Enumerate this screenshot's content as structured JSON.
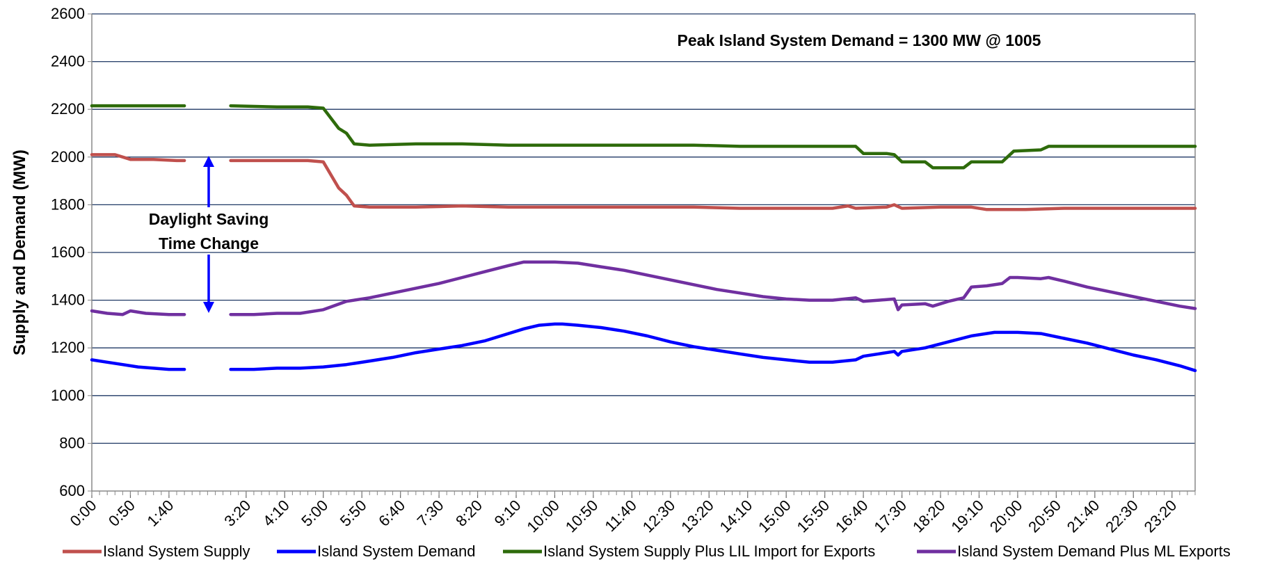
{
  "chart_data": {
    "type": "line",
    "title": "",
    "xlabel": "",
    "ylabel": "Supply and Demand (MW)",
    "ylim": [
      600,
      2600
    ],
    "y_ticks": [
      600,
      800,
      1000,
      1200,
      1400,
      1600,
      1800,
      2000,
      2200,
      2400,
      2600
    ],
    "x_range_minutes": [
      0,
      1430
    ],
    "x_step_minutes": 10,
    "x_tick_labels": [
      "0:00",
      "0:50",
      "1:40",
      "3:20",
      "4:10",
      "5:00",
      "5:50",
      "6:40",
      "7:30",
      "8:20",
      "9:10",
      "10:00",
      "10:50",
      "11:40",
      "12:30",
      "13:20",
      "14:10",
      "15:00",
      "15:50",
      "16:40",
      "17:30",
      "18:20",
      "19:10",
      "20:00",
      "20:50",
      "21:40",
      "22:30",
      "23:20"
    ],
    "gap_minutes": [
      120,
      180
    ],
    "grid": true,
    "legend_position": "bottom",
    "annotations": {
      "peak": "Peak Island System Demand = 1300 MW @ 1005",
      "dst_line1": "Daylight Saving",
      "dst_line2": "Time Change"
    },
    "series": [
      {
        "name": "Island System Supply",
        "color": "#C0504D",
        "points": [
          [
            0,
            2010
          ],
          [
            30,
            2010
          ],
          [
            50,
            1990
          ],
          [
            80,
            1990
          ],
          [
            110,
            1985
          ],
          [
            120,
            1985
          ],
          [
            180,
            1985
          ],
          [
            240,
            1985
          ],
          [
            280,
            1985
          ],
          [
            300,
            1980
          ],
          [
            320,
            1870
          ],
          [
            330,
            1840
          ],
          [
            340,
            1795
          ],
          [
            360,
            1790
          ],
          [
            420,
            1790
          ],
          [
            480,
            1795
          ],
          [
            540,
            1790
          ],
          [
            600,
            1790
          ],
          [
            660,
            1790
          ],
          [
            720,
            1790
          ],
          [
            780,
            1790
          ],
          [
            840,
            1785
          ],
          [
            900,
            1785
          ],
          [
            960,
            1785
          ],
          [
            980,
            1795
          ],
          [
            990,
            1785
          ],
          [
            1030,
            1790
          ],
          [
            1040,
            1800
          ],
          [
            1050,
            1785
          ],
          [
            1100,
            1790
          ],
          [
            1140,
            1790
          ],
          [
            1160,
            1780
          ],
          [
            1210,
            1780
          ],
          [
            1260,
            1785
          ],
          [
            1320,
            1785
          ],
          [
            1430,
            1785
          ]
        ]
      },
      {
        "name": "Island System Demand",
        "color": "#0000FF",
        "points": [
          [
            0,
            1150
          ],
          [
            20,
            1140
          ],
          [
            40,
            1130
          ],
          [
            60,
            1120
          ],
          [
            80,
            1115
          ],
          [
            100,
            1110
          ],
          [
            120,
            1110
          ],
          [
            180,
            1110
          ],
          [
            210,
            1110
          ],
          [
            240,
            1115
          ],
          [
            270,
            1115
          ],
          [
            300,
            1120
          ],
          [
            330,
            1130
          ],
          [
            360,
            1145
          ],
          [
            390,
            1160
          ],
          [
            420,
            1180
          ],
          [
            450,
            1195
          ],
          [
            480,
            1210
          ],
          [
            510,
            1230
          ],
          [
            540,
            1260
          ],
          [
            560,
            1280
          ],
          [
            580,
            1295
          ],
          [
            600,
            1300
          ],
          [
            610,
            1300
          ],
          [
            630,
            1295
          ],
          [
            660,
            1285
          ],
          [
            690,
            1270
          ],
          [
            720,
            1250
          ],
          [
            750,
            1225
          ],
          [
            780,
            1205
          ],
          [
            810,
            1190
          ],
          [
            840,
            1175
          ],
          [
            870,
            1160
          ],
          [
            900,
            1150
          ],
          [
            930,
            1140
          ],
          [
            960,
            1140
          ],
          [
            990,
            1150
          ],
          [
            1000,
            1165
          ],
          [
            1020,
            1175
          ],
          [
            1040,
            1185
          ],
          [
            1045,
            1170
          ],
          [
            1050,
            1185
          ],
          [
            1080,
            1200
          ],
          [
            1110,
            1225
          ],
          [
            1140,
            1250
          ],
          [
            1170,
            1265
          ],
          [
            1200,
            1265
          ],
          [
            1230,
            1260
          ],
          [
            1260,
            1240
          ],
          [
            1290,
            1220
          ],
          [
            1320,
            1195
          ],
          [
            1350,
            1170
          ],
          [
            1380,
            1150
          ],
          [
            1410,
            1125
          ],
          [
            1430,
            1105
          ]
        ]
      },
      {
        "name": "Island System Supply Plus LIL Import for Exports",
        "color": "#2E6B0B",
        "points": [
          [
            0,
            2215
          ],
          [
            30,
            2215
          ],
          [
            60,
            2215
          ],
          [
            90,
            2215
          ],
          [
            120,
            2215
          ],
          [
            180,
            2215
          ],
          [
            240,
            2210
          ],
          [
            280,
            2210
          ],
          [
            300,
            2205
          ],
          [
            320,
            2120
          ],
          [
            330,
            2100
          ],
          [
            340,
            2055
          ],
          [
            360,
            2050
          ],
          [
            420,
            2055
          ],
          [
            480,
            2055
          ],
          [
            540,
            2050
          ],
          [
            600,
            2050
          ],
          [
            660,
            2050
          ],
          [
            720,
            2050
          ],
          [
            780,
            2050
          ],
          [
            840,
            2045
          ],
          [
            900,
            2045
          ],
          [
            960,
            2045
          ],
          [
            990,
            2045
          ],
          [
            1000,
            2015
          ],
          [
            1030,
            2015
          ],
          [
            1040,
            2010
          ],
          [
            1050,
            1980
          ],
          [
            1080,
            1980
          ],
          [
            1090,
            1955
          ],
          [
            1130,
            1955
          ],
          [
            1140,
            1980
          ],
          [
            1180,
            1980
          ],
          [
            1195,
            2025
          ],
          [
            1230,
            2030
          ],
          [
            1240,
            2045
          ],
          [
            1300,
            2045
          ],
          [
            1360,
            2045
          ],
          [
            1430,
            2045
          ]
        ]
      },
      {
        "name": "Island System Demand Plus ML Exports",
        "color": "#7030A0",
        "points": [
          [
            0,
            1355
          ],
          [
            20,
            1345
          ],
          [
            40,
            1340
          ],
          [
            50,
            1355
          ],
          [
            70,
            1345
          ],
          [
            100,
            1340
          ],
          [
            120,
            1340
          ],
          [
            180,
            1340
          ],
          [
            210,
            1340
          ],
          [
            240,
            1345
          ],
          [
            270,
            1345
          ],
          [
            300,
            1360
          ],
          [
            330,
            1395
          ],
          [
            360,
            1410
          ],
          [
            390,
            1430
          ],
          [
            420,
            1450
          ],
          [
            450,
            1470
          ],
          [
            480,
            1495
          ],
          [
            510,
            1520
          ],
          [
            540,
            1545
          ],
          [
            560,
            1560
          ],
          [
            580,
            1560
          ],
          [
            600,
            1560
          ],
          [
            630,
            1555
          ],
          [
            660,
            1540
          ],
          [
            690,
            1525
          ],
          [
            720,
            1505
          ],
          [
            750,
            1485
          ],
          [
            780,
            1465
          ],
          [
            810,
            1445
          ],
          [
            840,
            1430
          ],
          [
            870,
            1415
          ],
          [
            900,
            1405
          ],
          [
            930,
            1400
          ],
          [
            960,
            1400
          ],
          [
            990,
            1410
          ],
          [
            1000,
            1395
          ],
          [
            1020,
            1400
          ],
          [
            1040,
            1405
          ],
          [
            1045,
            1360
          ],
          [
            1050,
            1380
          ],
          [
            1080,
            1385
          ],
          [
            1090,
            1375
          ],
          [
            1110,
            1395
          ],
          [
            1130,
            1410
          ],
          [
            1140,
            1455
          ],
          [
            1160,
            1460
          ],
          [
            1180,
            1470
          ],
          [
            1190,
            1495
          ],
          [
            1200,
            1495
          ],
          [
            1230,
            1490
          ],
          [
            1240,
            1495
          ],
          [
            1260,
            1480
          ],
          [
            1290,
            1455
          ],
          [
            1320,
            1435
          ],
          [
            1350,
            1415
          ],
          [
            1380,
            1395
          ],
          [
            1410,
            1375
          ],
          [
            1430,
            1365
          ]
        ]
      }
    ]
  }
}
